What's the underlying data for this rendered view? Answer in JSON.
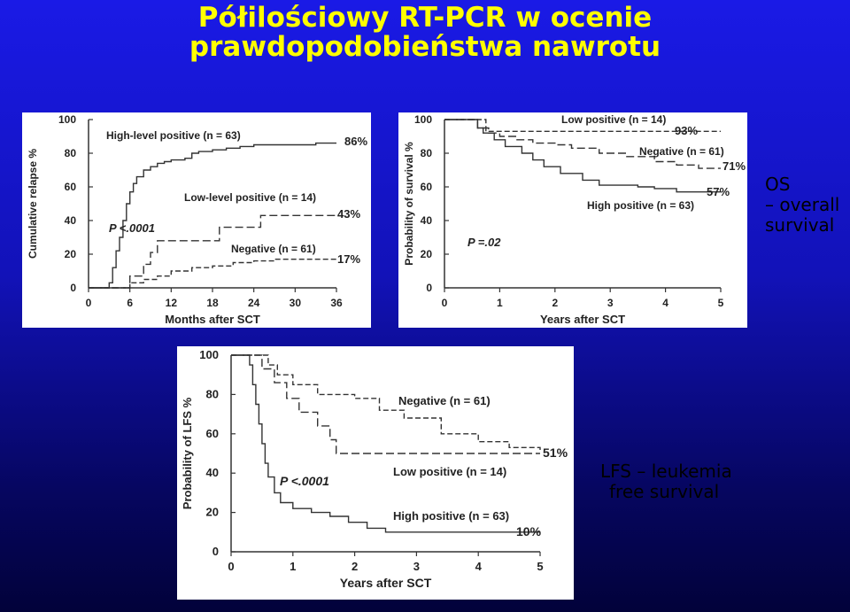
{
  "slide": {
    "title_line1": "Półilościowy RT-PCR w ocenie",
    "title_line2": "prawdopodobieństwa nawrotu",
    "os_note": [
      "OS",
      "– overall",
      "survival"
    ],
    "lfs_note": [
      "LFS – leukemia",
      "free survival"
    ],
    "colors": {
      "background": "#1414c8",
      "title": "#ffff00",
      "note": "#000000",
      "curve": "#333333"
    }
  },
  "chart_data": [
    {
      "type": "line",
      "subtype": "kaplan-meier-step",
      "xlabel": "Months after SCT",
      "ylabel": "Cumulative relapse %",
      "xlim": [
        0,
        36
      ],
      "ylim": [
        0,
        100
      ],
      "x_ticks": [
        "0",
        "6",
        "12",
        "18",
        "24",
        "30",
        "36"
      ],
      "y_ticks": [
        "0",
        "20",
        "40",
        "60",
        "80",
        "100"
      ],
      "pvalue_label": "P <.0001",
      "series": [
        {
          "name": "High-level positive (n = 63)",
          "style": "solid",
          "end_label": "86%",
          "points": [
            [
              0,
              0
            ],
            [
              3,
              0
            ],
            [
              3,
              3
            ],
            [
              3.5,
              12
            ],
            [
              4,
              22
            ],
            [
              4.5,
              30
            ],
            [
              5,
              40
            ],
            [
              5.5,
              50
            ],
            [
              6,
              57
            ],
            [
              6.5,
              62
            ],
            [
              7,
              66
            ],
            [
              8,
              70
            ],
            [
              9,
              72
            ],
            [
              10,
              74
            ],
            [
              11,
              75
            ],
            [
              12,
              76
            ],
            [
              14,
              77
            ],
            [
              15,
              80
            ],
            [
              16,
              81
            ],
            [
              18,
              82
            ],
            [
              20,
              83
            ],
            [
              22,
              84
            ],
            [
              24,
              85
            ],
            [
              30,
              85
            ],
            [
              33,
              86
            ],
            [
              36,
              86
            ]
          ]
        },
        {
          "name": "Low-level positive (n = 14)",
          "style": "dashed",
          "end_label": "43%",
          "points": [
            [
              0,
              0
            ],
            [
              6,
              0
            ],
            [
              6,
              7
            ],
            [
              8,
              14
            ],
            [
              9,
              21
            ],
            [
              10,
              28
            ],
            [
              12,
              28
            ],
            [
              18,
              28
            ],
            [
              19,
              36
            ],
            [
              24,
              36
            ],
            [
              25,
              43
            ],
            [
              36,
              43
            ]
          ]
        },
        {
          "name": "Negative (n = 61)",
          "style": "dashed",
          "end_label": "17%",
          "points": [
            [
              0,
              0
            ],
            [
              6,
              0
            ],
            [
              6,
              3
            ],
            [
              8,
              5
            ],
            [
              10,
              7
            ],
            [
              12,
              10
            ],
            [
              15,
              12
            ],
            [
              18,
              13
            ],
            [
              21,
              15
            ],
            [
              24,
              16
            ],
            [
              27,
              17
            ],
            [
              36,
              17
            ]
          ]
        }
      ]
    },
    {
      "type": "line",
      "subtype": "kaplan-meier-step",
      "xlabel": "Years after SCT",
      "ylabel": "Probability of survival %",
      "xlim": [
        0,
        5
      ],
      "ylim": [
        0,
        100
      ],
      "x_ticks": [
        "0",
        "1",
        "2",
        "3",
        "4",
        "5"
      ],
      "y_ticks": [
        "0",
        "20",
        "40",
        "60",
        "80",
        "100"
      ],
      "pvalue_label": "P =.02",
      "series": [
        {
          "name": "Low positive (n = 14)",
          "style": "dashed",
          "end_label": "93%",
          "points": [
            [
              0,
              100
            ],
            [
              0.75,
              100
            ],
            [
              0.75,
              93
            ],
            [
              5,
              93
            ]
          ]
        },
        {
          "name": "Negative (n = 61)",
          "style": "dashed",
          "end_label": "71%",
          "points": [
            [
              0,
              100
            ],
            [
              0.5,
              100
            ],
            [
              0.6,
              95
            ],
            [
              0.8,
              92
            ],
            [
              1.0,
              90
            ],
            [
              1.3,
              88
            ],
            [
              1.6,
              86
            ],
            [
              2.0,
              85
            ],
            [
              2.3,
              83
            ],
            [
              2.8,
              80
            ],
            [
              3.3,
              78
            ],
            [
              3.8,
              75
            ],
            [
              4.2,
              73
            ],
            [
              4.6,
              71
            ],
            [
              5,
              71
            ]
          ]
        },
        {
          "name": "High positive (n = 63)",
          "style": "solid",
          "end_label": "57%",
          "points": [
            [
              0,
              100
            ],
            [
              0.5,
              100
            ],
            [
              0.6,
              95
            ],
            [
              0.7,
              92
            ],
            [
              0.9,
              88
            ],
            [
              1.1,
              84
            ],
            [
              1.4,
              80
            ],
            [
              1.6,
              76
            ],
            [
              1.8,
              72
            ],
            [
              2.1,
              68
            ],
            [
              2.5,
              64
            ],
            [
              2.8,
              61
            ],
            [
              3.5,
              60
            ],
            [
              3.8,
              59
            ],
            [
              4.2,
              57
            ],
            [
              5,
              57
            ]
          ]
        }
      ]
    },
    {
      "type": "line",
      "subtype": "kaplan-meier-step",
      "xlabel": "Years after SCT",
      "ylabel": "Probability of LFS %",
      "xlim": [
        0,
        5
      ],
      "ylim": [
        0,
        100
      ],
      "x_ticks": [
        "0",
        "1",
        "2",
        "3",
        "4",
        "5"
      ],
      "y_ticks": [
        "0",
        "20",
        "40",
        "60",
        "80",
        "100"
      ],
      "pvalue_label": "P <.0001",
      "series": [
        {
          "name": "Negative (n = 61)",
          "style": "dashed",
          "end_label": "51%",
          "points": [
            [
              0,
              100
            ],
            [
              0.5,
              100
            ],
            [
              0.6,
              95
            ],
            [
              0.75,
              90
            ],
            [
              1.0,
              85
            ],
            [
              1.4,
              80
            ],
            [
              2.0,
              78
            ],
            [
              2.4,
              72
            ],
            [
              2.8,
              68
            ],
            [
              3.4,
              60
            ],
            [
              4.0,
              56
            ],
            [
              4.5,
              53
            ],
            [
              5,
              51
            ]
          ]
        },
        {
          "name": "Low positive (n = 14)",
          "style": "dashed",
          "end_label": "",
          "points": [
            [
              0,
              100
            ],
            [
              0.5,
              100
            ],
            [
              0.5,
              93
            ],
            [
              0.7,
              86
            ],
            [
              0.9,
              78
            ],
            [
              1.1,
              71
            ],
            [
              1.4,
              64
            ],
            [
              1.6,
              57
            ],
            [
              1.7,
              50
            ],
            [
              5,
              50
            ]
          ]
        },
        {
          "name": "High positive (n = 63)",
          "style": "solid",
          "end_label": "10%",
          "points": [
            [
              0,
              100
            ],
            [
              0.3,
              95
            ],
            [
              0.35,
              85
            ],
            [
              0.4,
              75
            ],
            [
              0.45,
              65
            ],
            [
              0.5,
              55
            ],
            [
              0.55,
              45
            ],
            [
              0.6,
              38
            ],
            [
              0.7,
              30
            ],
            [
              0.8,
              25
            ],
            [
              1.0,
              22
            ],
            [
              1.3,
              20
            ],
            [
              1.6,
              18
            ],
            [
              1.9,
              15
            ],
            [
              2.2,
              12
            ],
            [
              2.5,
              10
            ],
            [
              5,
              10
            ]
          ]
        }
      ]
    }
  ]
}
